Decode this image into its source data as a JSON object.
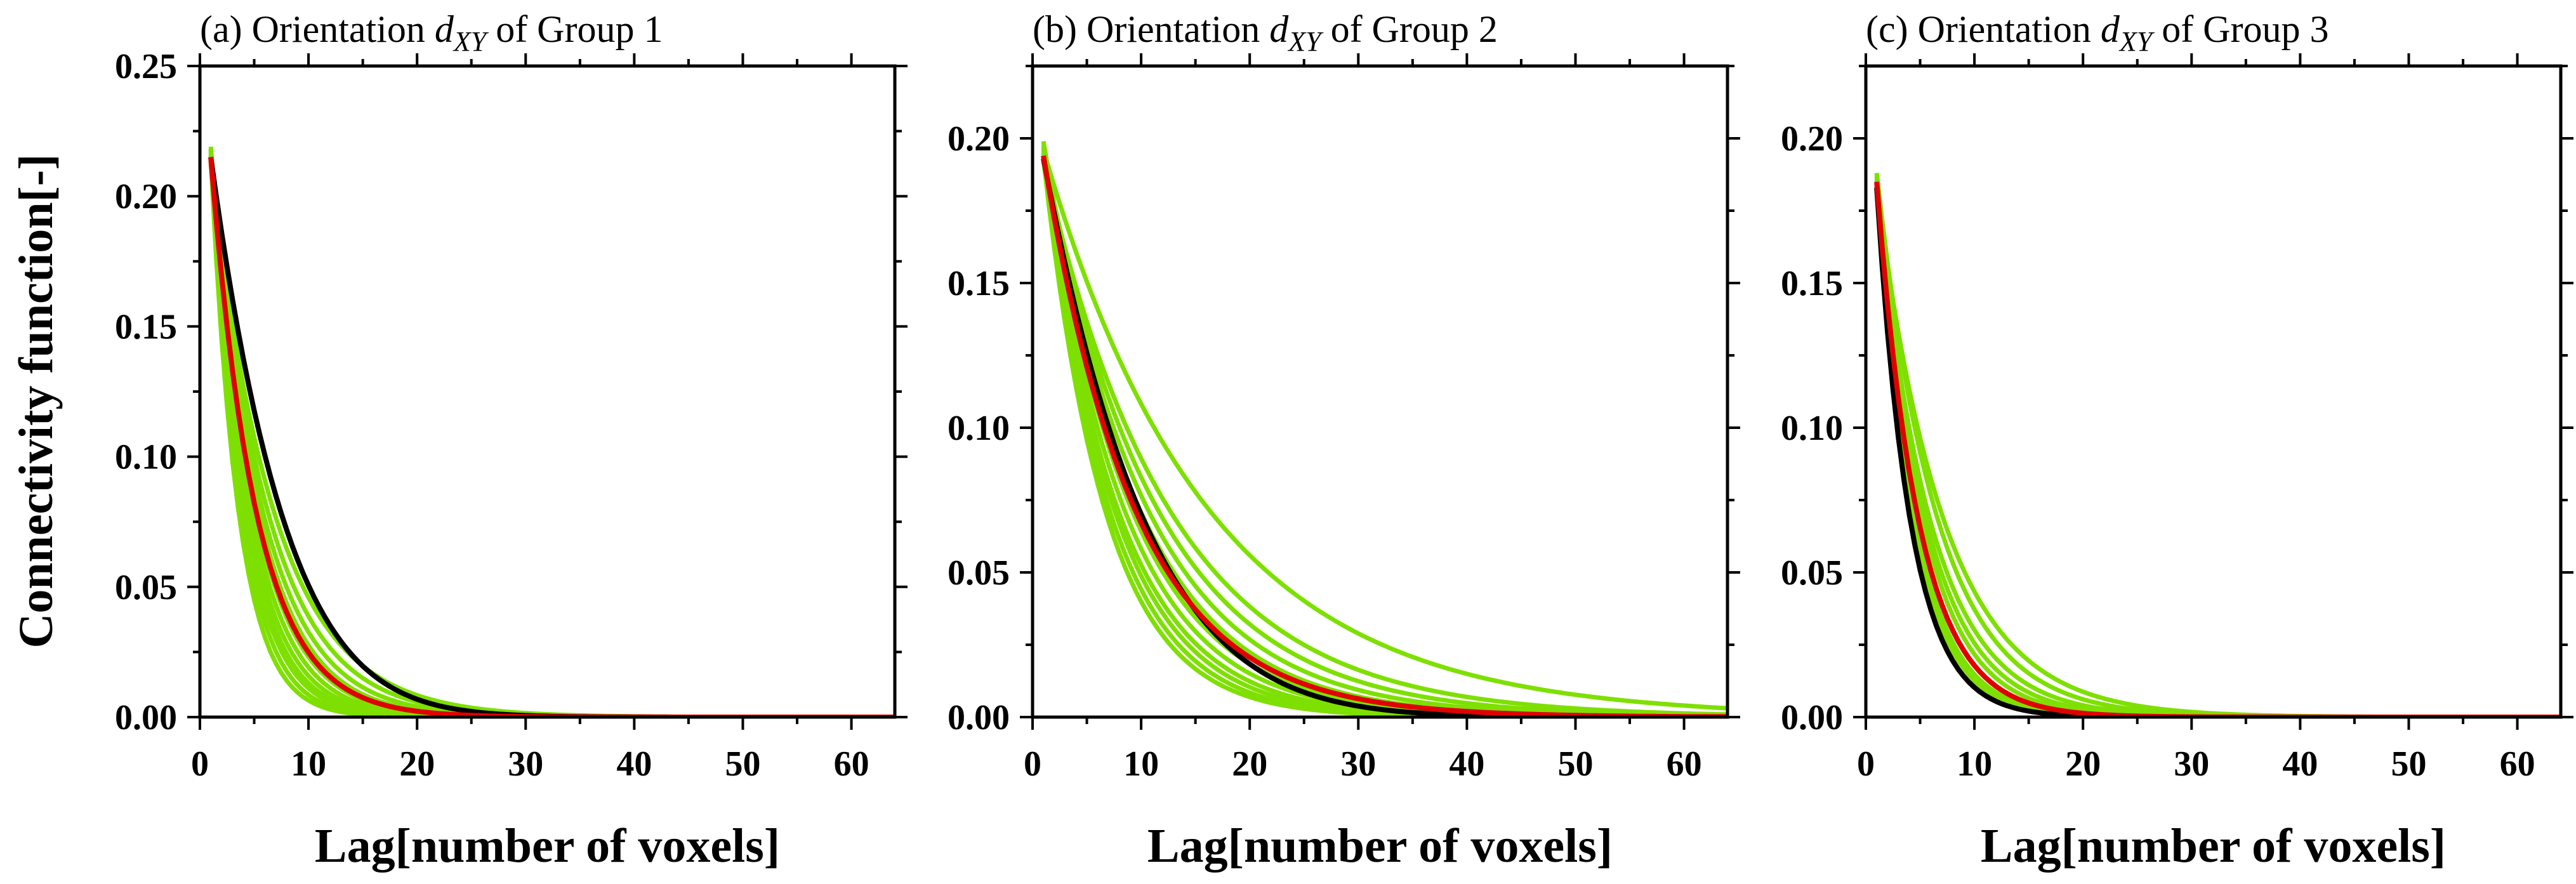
{
  "figure": {
    "ylabel": "Connectivity function[-]",
    "colors": {
      "realizations": "#7ee000",
      "reference": "#000000",
      "mean": "#e00000"
    }
  },
  "chart_data": [
    {
      "type": "line",
      "title_prefix": "(a) Orientation ",
      "title_var": "d",
      "title_sub": "XY",
      "title_suffix": " of Group 1",
      "xlabel": "Lag[number of voxels]",
      "ylabel": "Connectivity function[-]",
      "xlim": [
        0,
        64
      ],
      "ylim": [
        0,
        0.25
      ],
      "xticks": [
        0,
        10,
        20,
        30,
        40,
        50,
        60
      ],
      "yticks": [
        0.0,
        0.05,
        0.1,
        0.15,
        0.2,
        0.25
      ],
      "ytick_labels": [
        "0.00",
        "0.05",
        "0.10",
        "0.15",
        "0.20",
        "0.25"
      ],
      "series": [
        {
          "name": "realization",
          "role": "realization",
          "c0": 0.212,
          "decay": 0.17
        },
        {
          "name": "realization",
          "role": "realization",
          "c0": 0.214,
          "decay": 0.19
        },
        {
          "name": "realization",
          "role": "realization",
          "c0": 0.216,
          "decay": 0.21
        },
        {
          "name": "realization",
          "role": "realization",
          "c0": 0.218,
          "decay": 0.23
        },
        {
          "name": "realization",
          "role": "realization",
          "c0": 0.219,
          "decay": 0.25
        },
        {
          "name": "realization",
          "role": "realization",
          "c0": 0.217,
          "decay": 0.27
        },
        {
          "name": "realization",
          "role": "realization",
          "c0": 0.215,
          "decay": 0.29
        },
        {
          "name": "realization",
          "role": "realization",
          "c0": 0.213,
          "decay": 0.31
        },
        {
          "name": "realization",
          "role": "realization",
          "c0": 0.216,
          "decay": 0.33
        },
        {
          "name": "realization",
          "role": "realization",
          "c0": 0.218,
          "decay": 0.36
        },
        {
          "name": "realization",
          "role": "realization",
          "c0": 0.214,
          "decay": 0.39
        },
        {
          "name": "reference",
          "role": "reference",
          "c0": 0.215,
          "decay": 0.13,
          "shape": "gauss",
          "sigma": 16
        },
        {
          "name": "mean",
          "role": "mean",
          "c0": 0.215,
          "decay": 0.24
        }
      ]
    },
    {
      "type": "line",
      "title_prefix": "(b) Orientation ",
      "title_var": "d",
      "title_sub": "XY",
      "title_suffix": " of Group 2",
      "xlabel": "Lag[number of voxels]",
      "ylabel": "",
      "xlim": [
        0,
        64
      ],
      "ylim": [
        0,
        0.225
      ],
      "xticks": [
        0,
        10,
        20,
        30,
        40,
        50,
        60
      ],
      "yticks": [
        0.0,
        0.05,
        0.1,
        0.15,
        0.2
      ],
      "ytick_labels": [
        "0.00",
        "0.05",
        "0.10",
        "0.15",
        "0.20"
      ],
      "series": [
        {
          "name": "realization",
          "role": "realization",
          "c0": 0.192,
          "decay": 0.085
        },
        {
          "name": "realization",
          "role": "realization",
          "c0": 0.195,
          "decay": 0.095
        },
        {
          "name": "realization",
          "role": "realization",
          "c0": 0.197,
          "decay": 0.105
        },
        {
          "name": "realization",
          "role": "realization",
          "c0": 0.199,
          "decay": 0.115
        },
        {
          "name": "realization",
          "role": "realization",
          "c0": 0.198,
          "decay": 0.125
        },
        {
          "name": "realization",
          "role": "realization",
          "c0": 0.196,
          "decay": 0.135
        },
        {
          "name": "realization",
          "role": "realization",
          "c0": 0.194,
          "decay": 0.145
        },
        {
          "name": "realization",
          "role": "realization",
          "c0": 0.197,
          "decay": 0.155
        },
        {
          "name": "realization",
          "role": "realization",
          "c0": 0.195,
          "decay": 0.165
        },
        {
          "name": "realization",
          "role": "realization",
          "c0": 0.193,
          "decay": 0.175
        },
        {
          "name": "realization",
          "role": "realization",
          "c0": 0.196,
          "decay": 0.066
        },
        {
          "name": "reference",
          "role": "reference",
          "c0": 0.193,
          "decay": 0.09,
          "shape": "gauss",
          "sigma": 22
        },
        {
          "name": "mean",
          "role": "mean",
          "c0": 0.194,
          "decay": 0.118
        }
      ]
    },
    {
      "type": "line",
      "title_prefix": "(c) Orientation ",
      "title_var": "d",
      "title_sub": "XY",
      "title_suffix": " of Group 3",
      "xlabel": "Lag[number of voxels]",
      "ylabel": "",
      "xlim": [
        0,
        64
      ],
      "ylim": [
        0,
        0.225
      ],
      "xticks": [
        0,
        10,
        20,
        30,
        40,
        50,
        60
      ],
      "yticks": [
        0.0,
        0.05,
        0.1,
        0.15,
        0.2
      ],
      "ytick_labels": [
        "0.00",
        "0.05",
        "0.10",
        "0.15",
        "0.20"
      ],
      "series": [
        {
          "name": "realization",
          "role": "realization",
          "c0": 0.182,
          "decay": 0.2
        },
        {
          "name": "realization",
          "role": "realization",
          "c0": 0.185,
          "decay": 0.22
        },
        {
          "name": "realization",
          "role": "realization",
          "c0": 0.188,
          "decay": 0.24
        },
        {
          "name": "realization",
          "role": "realization",
          "c0": 0.186,
          "decay": 0.26
        },
        {
          "name": "realization",
          "role": "realization",
          "c0": 0.184,
          "decay": 0.28
        },
        {
          "name": "realization",
          "role": "realization",
          "c0": 0.187,
          "decay": 0.3
        },
        {
          "name": "realization",
          "role": "realization",
          "c0": 0.185,
          "decay": 0.32
        },
        {
          "name": "realization",
          "role": "realization",
          "c0": 0.188,
          "decay": 0.18
        },
        {
          "name": "realization",
          "role": "realization",
          "c0": 0.183,
          "decay": 0.16
        },
        {
          "name": "reference",
          "role": "reference",
          "c0": 0.183,
          "decay": 0.32
        },
        {
          "name": "mean",
          "role": "mean",
          "c0": 0.185,
          "decay": 0.26
        }
      ]
    }
  ]
}
